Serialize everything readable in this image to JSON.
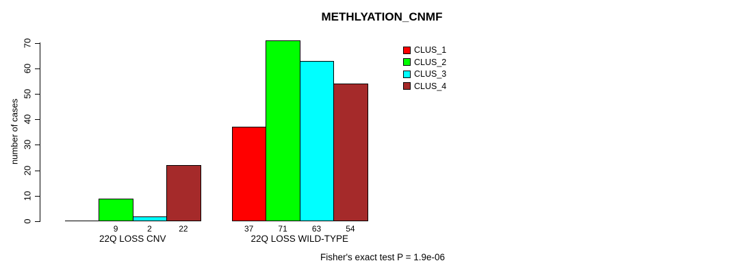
{
  "title": "METHLYATION_CNMF",
  "chart_data": {
    "type": "bar",
    "title": "METHLYATION_CNMF",
    "xlabel": "",
    "ylabel": "number of cases",
    "ylim": [
      0,
      70
    ],
    "yticks": [
      0,
      10,
      20,
      30,
      40,
      50,
      60,
      70
    ],
    "grid": false,
    "legend_position": "right",
    "series": [
      {
        "name": "CLUS_1",
        "color": "#FF0000"
      },
      {
        "name": "CLUS_2",
        "color": "#00FF00"
      },
      {
        "name": "CLUS_3",
        "color": "#00FFFF"
      },
      {
        "name": "CLUS_4",
        "color": "#A52A2A"
      }
    ],
    "groups": [
      {
        "label": "22Q LOSS CNV",
        "values": [
          0,
          9,
          2,
          22
        ],
        "bar_labels": [
          "",
          "9",
          "2",
          "22"
        ]
      },
      {
        "label": "22Q LOSS WILD-TYPE",
        "values": [
          37,
          71,
          63,
          54
        ],
        "bar_labels": [
          "37",
          "71",
          "63",
          "54"
        ]
      }
    ],
    "footnote": "Fisher's exact test P = 1.9e-06"
  }
}
